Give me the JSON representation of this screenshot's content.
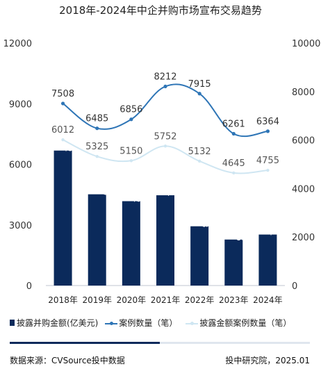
{
  "chart_data": {
    "type": "bar",
    "title": "2018年-2024年中企并购市场宣布交易趋势",
    "categories": [
      "2018年",
      "2019年",
      "2020年",
      "2021年",
      "2022年",
      "2023年",
      "2024年"
    ],
    "y_left": {
      "ticks": [
        "12000",
        "9000",
        "6000",
        "3000",
        "0"
      ],
      "range": [
        0,
        12000
      ]
    },
    "y_right": {
      "ticks": [
        "10000",
        "8000",
        "6000",
        "4000",
        "2000",
        "0"
      ],
      "range": [
        0,
        10000
      ]
    },
    "series": [
      {
        "name": "披露并购金额(亿美元)",
        "type": "bar",
        "axis": "left",
        "values": [
          6680.72,
          4516.37,
          4175.72,
          4468.01,
          2933.23,
          2277.26,
          2524.31
        ],
        "labels": [
          "6680.72",
          "4516.37",
          "4175.72",
          "4468.01",
          "2933.23",
          "2277.26",
          "2524.31"
        ]
      },
      {
        "name": "案例数量（笔）",
        "type": "line",
        "axis": "right",
        "values": [
          7508,
          6485,
          6856,
          8212,
          7915,
          6261,
          6364
        ],
        "labels": [
          "7508",
          "6485",
          "6856",
          "8212",
          "7915",
          "6261",
          "6364"
        ]
      },
      {
        "name": "披露金额案例数量（笔）",
        "type": "line",
        "axis": "right",
        "values": [
          6012,
          5325,
          5150,
          5752,
          5132,
          4645,
          4755
        ],
        "labels": [
          "6012",
          "5325",
          "5150",
          "5752",
          "5132",
          "4645",
          "4755"
        ]
      }
    ],
    "legend_position": "bottom",
    "grid": false,
    "colors": {
      "bars": "#0b2a5b",
      "line1": "#2e75b6",
      "line2": "#cfe6f2"
    }
  },
  "footer": {
    "source": "数据来源：CVSource投中数据",
    "credit": "投中研究院，2025.01"
  }
}
